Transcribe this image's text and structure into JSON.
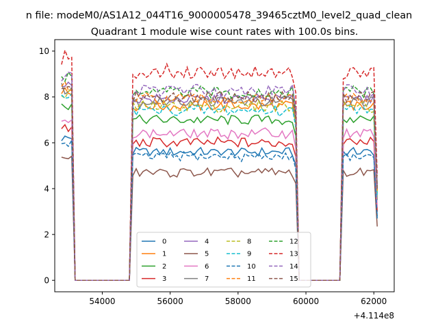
{
  "chart_data": {
    "type": "line",
    "suptitle": "n file: modeM0/AS1A12_044T16_9000005478_39465cztM0_level2_quad_clean",
    "title": "Quadrant 1 module wise count rates with 100.0s bins.",
    "xlabel": "",
    "ylabel": "",
    "offset_text": "+4.114e8",
    "xlim": [
      52600,
      62600
    ],
    "ylim": [
      -0.5,
      10.5
    ],
    "x_ticks": [
      54000,
      56000,
      58000,
      60000,
      62000
    ],
    "x_tick_labels": [
      "54000",
      "56000",
      "58000",
      "60000",
      "62000"
    ],
    "y_ticks": [
      0,
      2,
      4,
      6,
      8,
      10
    ],
    "y_tick_labels": [
      "0",
      "2",
      "4",
      "6",
      "8",
      "10"
    ],
    "grid": false,
    "legend_position": "lower center",
    "legend_columns": 4,
    "observing_windows": [
      {
        "start": 52800,
        "end": 53100,
        "bins": 4
      },
      {
        "start": 54900,
        "end": 59700,
        "bins": 49
      },
      {
        "start": 61100,
        "end": 62100,
        "bins": 11
      }
    ],
    "gap_level": 0,
    "series": [
      {
        "name": "0",
        "color": "#1f77b4",
        "dash": "solid",
        "level": 5.6,
        "spread": 0.18
      },
      {
        "name": "1",
        "color": "#ff7f0e",
        "dash": "solid",
        "level": 7.6,
        "spread": 0.22
      },
      {
        "name": "2",
        "color": "#2ca02c",
        "dash": "solid",
        "level": 7.0,
        "spread": 0.22
      },
      {
        "name": "3",
        "color": "#d62728",
        "dash": "solid",
        "level": 6.0,
        "spread": 0.22
      },
      {
        "name": "4",
        "color": "#9467bd",
        "dash": "solid",
        "level": 7.9,
        "spread": 0.22
      },
      {
        "name": "5",
        "color": "#8c564b",
        "dash": "solid",
        "level": 4.7,
        "spread": 0.2
      },
      {
        "name": "6",
        "color": "#e377c2",
        "dash": "solid",
        "level": 6.4,
        "spread": 0.22
      },
      {
        "name": "7",
        "color": "#7f7f7f",
        "dash": "solid",
        "level": 7.8,
        "spread": 0.25
      },
      {
        "name": "8",
        "color": "#bcbd22",
        "dash": "dashed",
        "level": 7.6,
        "spread": 0.25
      },
      {
        "name": "9",
        "color": "#17becf",
        "dash": "dashed",
        "level": 7.4,
        "spread": 0.25
      },
      {
        "name": "10",
        "color": "#1f77b4",
        "dash": "dashed",
        "level": 5.4,
        "spread": 0.2
      },
      {
        "name": "11",
        "color": "#ff7f0e",
        "dash": "dashed",
        "level": 7.9,
        "spread": 0.25
      },
      {
        "name": "12",
        "color": "#2ca02c",
        "dash": "dashed",
        "level": 8.2,
        "spread": 0.25
      },
      {
        "name": "13",
        "color": "#d62728",
        "dash": "dashed",
        "level": 9.1,
        "spread": 0.3
      },
      {
        "name": "14",
        "color": "#9467bd",
        "dash": "dashed",
        "level": 8.3,
        "spread": 0.25
      },
      {
        "name": "15",
        "color": "#8c564b",
        "dash": "dashed",
        "level": 8.0,
        "spread": 0.25
      }
    ]
  }
}
